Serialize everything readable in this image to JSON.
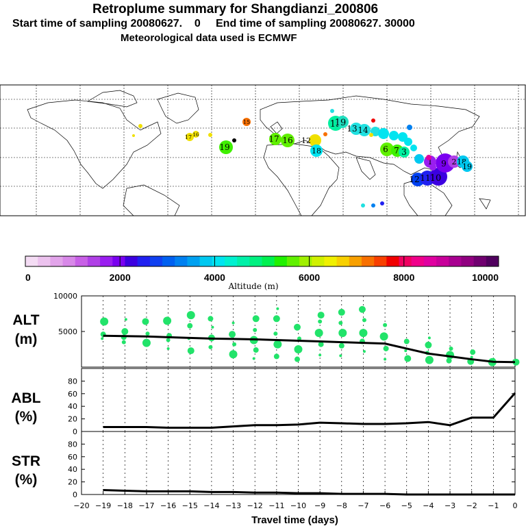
{
  "header": {
    "title": "Retroplume summary for Shangdianzi_200806",
    "line2": "Start time of sampling 20080627.    0     End time of sampling 20080627. 30000",
    "line3": "Meteorological data used is ECMWF"
  },
  "colorbar": {
    "label": "Altitude (m)",
    "tick_labels": [
      "0",
      "2000",
      "4000",
      "6000",
      "8000",
      "10000"
    ],
    "colors": [
      "#f4dcf4",
      "#ecc2ee",
      "#e2a4ea",
      "#d888e8",
      "#c860e6",
      "#b040e6",
      "#9a1ef0",
      "#7a00f0",
      "#3c00e0",
      "#2020f0",
      "#1040f0",
      "#0060f0",
      "#0080f0",
      "#00a0f0",
      "#00c8f0",
      "#00e4f0",
      "#00f0d0",
      "#00f0a8",
      "#00f080",
      "#00f050",
      "#20f000",
      "#60f000",
      "#a0f000",
      "#d0f000",
      "#f0f000",
      "#f8d000",
      "#f8a000",
      "#f87000",
      "#f84000",
      "#f00000",
      "#f00060",
      "#f0008a",
      "#e000a0",
      "#c8009a",
      "#a80090",
      "#900080",
      "#700070",
      "#50005e"
    ]
  },
  "map": {
    "name": "world-map",
    "markers": [
      {
        "label": "19",
        "color": "#00f0a0"
      },
      {
        "label": "19",
        "color": "#20e0c0"
      },
      {
        "label": "13",
        "color": "#20e0e0"
      },
      {
        "label": "14",
        "color": "#20e0e0"
      },
      {
        "label": "12",
        "color": "#f0e000"
      },
      {
        "label": "6",
        "color": "#60f000"
      },
      {
        "label": "7",
        "color": "#40f000"
      },
      {
        "label": "3",
        "color": "#00f0a0"
      },
      {
        "label": "17",
        "color": "#60f000"
      },
      {
        "label": "16",
        "color": "#60f000"
      },
      {
        "label": "19",
        "color": "#40f000"
      },
      {
        "label": "12",
        "color": "#0040f0"
      },
      {
        "label": "11",
        "color": "#2020f0"
      },
      {
        "label": "10",
        "color": "#3c00e0"
      },
      {
        "label": "9",
        "color": "#7a00f0"
      },
      {
        "label": "2",
        "color": "#b040e6"
      },
      {
        "label": "1",
        "color": "#9a1ef0"
      },
      {
        "label": "18",
        "color": "#00c8f0"
      },
      {
        "label": "19",
        "color": "#00c8f0"
      },
      {
        "label": "15",
        "color": "#f87000"
      },
      {
        "label": "17",
        "color": "#f0e000"
      },
      {
        "label": "16",
        "color": "#f0e000"
      },
      {
        "label": "18",
        "color": "#00e4f0"
      }
    ]
  },
  "chart_data": [
    {
      "type": "line",
      "panel": "ALT",
      "ylabel_top": "ALT",
      "ylabel_unit": "(m)",
      "ylim": [
        0,
        10000
      ],
      "y_ticks": [
        5000,
        10000
      ],
      "x": [
        -19,
        -18,
        -17,
        -16,
        -15,
        -14,
        -13,
        -12,
        -11,
        -10,
        -9,
        -8,
        -7,
        -6,
        -5,
        -4,
        -3,
        -2,
        -1,
        0
      ],
      "values": [
        4400,
        4350,
        4300,
        4200,
        4100,
        4000,
        3950,
        3900,
        3800,
        3700,
        3600,
        3500,
        3400,
        3300,
        2600,
        1900,
        1500,
        1100,
        750,
        700
      ],
      "scatter": [
        {
          "x": -19,
          "y": 4000
        },
        {
          "x": -19,
          "y": 4600
        },
        {
          "x": -19,
          "y": 6400
        },
        {
          "x": -18,
          "y": 3500
        },
        {
          "x": -18,
          "y": 5000
        },
        {
          "x": -18,
          "y": 6700
        },
        {
          "x": -18,
          "y": 4200
        },
        {
          "x": -17,
          "y": 3400
        },
        {
          "x": -17,
          "y": 4700
        },
        {
          "x": -17,
          "y": 6400
        },
        {
          "x": -16,
          "y": 2600
        },
        {
          "x": -16,
          "y": 4400
        },
        {
          "x": -16,
          "y": 6500
        },
        {
          "x": -16,
          "y": 3800
        },
        {
          "x": -15,
          "y": 2300
        },
        {
          "x": -15,
          "y": 4000
        },
        {
          "x": -15,
          "y": 5800
        },
        {
          "x": -15,
          "y": 7300
        },
        {
          "x": -14,
          "y": 2800
        },
        {
          "x": -14,
          "y": 4100
        },
        {
          "x": -14,
          "y": 5600
        },
        {
          "x": -14,
          "y": 6800
        },
        {
          "x": -13,
          "y": 1800
        },
        {
          "x": -13,
          "y": 3200
        },
        {
          "x": -13,
          "y": 4600
        },
        {
          "x": -13,
          "y": 6200
        },
        {
          "x": -12,
          "y": 2400
        },
        {
          "x": -12,
          "y": 3800
        },
        {
          "x": -12,
          "y": 5200
        },
        {
          "x": -12,
          "y": 6800
        },
        {
          "x": -12,
          "y": 1200
        },
        {
          "x": -11,
          "y": 1500
        },
        {
          "x": -11,
          "y": 3200
        },
        {
          "x": -11,
          "y": 4700
        },
        {
          "x": -11,
          "y": 6800
        },
        {
          "x": -11,
          "y": 8200
        },
        {
          "x": -10,
          "y": 1100
        },
        {
          "x": -10,
          "y": 2500
        },
        {
          "x": -10,
          "y": 4000
        },
        {
          "x": -10,
          "y": 5600
        },
        {
          "x": -9,
          "y": 1700
        },
        {
          "x": -9,
          "y": 3200
        },
        {
          "x": -9,
          "y": 4800
        },
        {
          "x": -9,
          "y": 6400
        },
        {
          "x": -9,
          "y": 7300
        },
        {
          "x": -8,
          "y": 1600
        },
        {
          "x": -8,
          "y": 3000
        },
        {
          "x": -8,
          "y": 4800
        },
        {
          "x": -8,
          "y": 6200
        },
        {
          "x": -8,
          "y": 7700
        },
        {
          "x": -7,
          "y": 2200
        },
        {
          "x": -7,
          "y": 3600
        },
        {
          "x": -7,
          "y": 4800
        },
        {
          "x": -7,
          "y": 6600
        },
        {
          "x": -7,
          "y": 8100
        },
        {
          "x": -6,
          "y": 1100
        },
        {
          "x": -6,
          "y": 2600
        },
        {
          "x": -6,
          "y": 4300
        },
        {
          "x": -6,
          "y": 5900
        },
        {
          "x": -5,
          "y": 1200
        },
        {
          "x": -5,
          "y": 2300
        },
        {
          "x": -5,
          "y": 3600
        },
        {
          "x": -4,
          "y": 1000
        },
        {
          "x": -4,
          "y": 2000
        },
        {
          "x": -4,
          "y": 3100
        },
        {
          "x": -4,
          "y": 4100
        },
        {
          "x": -3,
          "y": 900
        },
        {
          "x": -3,
          "y": 1700
        },
        {
          "x": -3,
          "y": 2600
        },
        {
          "x": -2,
          "y": 800
        },
        {
          "x": -2,
          "y": 1400
        },
        {
          "x": -2,
          "y": 2100
        },
        {
          "x": -1,
          "y": 700
        },
        {
          "x": -1,
          "y": 1000
        },
        {
          "x": 0,
          "y": 700
        },
        {
          "x": 0,
          "y": 900
        }
      ]
    },
    {
      "type": "line",
      "panel": "ABL",
      "ylabel_top": "ABL",
      "ylabel_unit": "(%)",
      "ylim": [
        0,
        100
      ],
      "y_ticks": [
        0,
        20,
        40,
        60,
        80
      ],
      "x": [
        -19,
        -18,
        -17,
        -16,
        -15,
        -14,
        -13,
        -12,
        -11,
        -10,
        -9,
        -8,
        -7,
        -6,
        -5,
        -4,
        -3,
        -2,
        -1,
        0
      ],
      "values": [
        7,
        7,
        7,
        6,
        6,
        6,
        8,
        10,
        10,
        11,
        14,
        13,
        12,
        12,
        13,
        15,
        10,
        22,
        22,
        61
      ]
    },
    {
      "type": "line",
      "panel": "STR",
      "ylabel_top": "STR",
      "ylabel_unit": "(%)",
      "ylim": [
        0,
        100
      ],
      "y_ticks": [
        0,
        20,
        40,
        60,
        80
      ],
      "x": [
        -19,
        -18,
        -17,
        -16,
        -15,
        -14,
        -13,
        -12,
        -11,
        -10,
        -9,
        -8,
        -7,
        -6,
        -5,
        -4,
        -3,
        -2,
        -1,
        0
      ],
      "values": [
        7,
        6,
        5,
        5,
        5,
        4,
        4,
        3,
        3,
        2,
        2,
        1,
        1,
        1,
        0,
        0,
        0,
        0,
        0,
        0
      ]
    }
  ],
  "xaxis": {
    "label": "Travel time (days)",
    "ticks": [
      -20,
      -19,
      -18,
      -17,
      -16,
      -15,
      -14,
      -13,
      -12,
      -11,
      -10,
      -9,
      -8,
      -7,
      -6,
      -5,
      -4,
      -3,
      -2,
      -1,
      0
    ],
    "tick_labels": [
      "−20",
      "−19",
      "−18",
      "−17",
      "−16",
      "−15",
      "−14",
      "−13",
      "−12",
      "−11",
      "−10",
      "−9",
      "−8",
      "−7",
      "−6",
      "−5",
      "−4",
      "−3",
      "−2",
      "−1",
      "0"
    ]
  }
}
